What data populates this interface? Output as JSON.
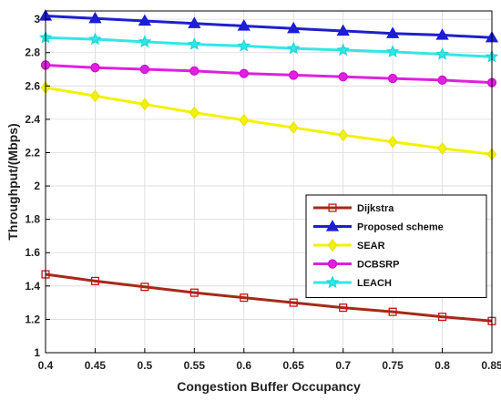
{
  "chart_data": {
    "type": "line",
    "xlabel": "Congestion Buffer Occupancy",
    "ylabel": "Throughput/(Mbps)",
    "xlim": [
      0.4,
      0.85
    ],
    "ylim": [
      1,
      3.05
    ],
    "xticks": [
      0.4,
      0.45,
      0.5,
      0.55,
      0.6,
      0.65,
      0.7,
      0.75,
      0.8,
      0.85
    ],
    "xtick_labels": [
      "0.4",
      "0.45",
      "0.5",
      "0.55",
      "0.6",
      "0.65",
      "0.7",
      "0.75",
      "0.8",
      "0.85"
    ],
    "yticks": [
      1,
      1.2,
      1.4,
      1.6,
      1.8,
      2,
      2.2,
      2.4,
      2.6,
      2.8,
      3
    ],
    "ytick_labels": [
      "1",
      "1.2",
      "1.4",
      "1.6",
      "1.8",
      "2",
      "2.2",
      "2.4",
      "2.6",
      "2.8",
      "3"
    ],
    "grid": true,
    "legend_position": "center-right",
    "x": [
      0.4,
      0.45,
      0.5,
      0.55,
      0.6,
      0.65,
      0.7,
      0.75,
      0.8,
      0.85
    ],
    "series": [
      {
        "name": "Dijkstra",
        "marker": "square",
        "color": "#a52a1a",
        "marker_edge": "#d01010",
        "values": [
          1.47,
          1.43,
          1.395,
          1.36,
          1.33,
          1.3,
          1.27,
          1.245,
          1.215,
          1.19
        ]
      },
      {
        "name": "Proposed scheme",
        "marker": "triangle",
        "color": "#1f1fcc",
        "marker_edge": "#1a1ae6",
        "values": [
          3.02,
          3.005,
          2.99,
          2.975,
          2.96,
          2.945,
          2.93,
          2.915,
          2.905,
          2.89
        ]
      },
      {
        "name": "SEAR",
        "marker": "diamond",
        "color": "#f2f200",
        "marker_edge": "#e6e600",
        "values": [
          2.59,
          2.54,
          2.49,
          2.44,
          2.395,
          2.35,
          2.305,
          2.265,
          2.225,
          2.19
        ]
      },
      {
        "name": "DCBSRP",
        "marker": "circle",
        "color": "#e020e0",
        "marker_edge": "#d010d0",
        "values": [
          2.725,
          2.71,
          2.7,
          2.69,
          2.675,
          2.665,
          2.655,
          2.645,
          2.635,
          2.62
        ]
      },
      {
        "name": "LEACH",
        "marker": "star",
        "color": "#33e6e6",
        "marker_edge": "#20d8d8",
        "values": [
          2.89,
          2.88,
          2.865,
          2.85,
          2.84,
          2.825,
          2.815,
          2.805,
          2.79,
          2.775
        ]
      }
    ]
  }
}
